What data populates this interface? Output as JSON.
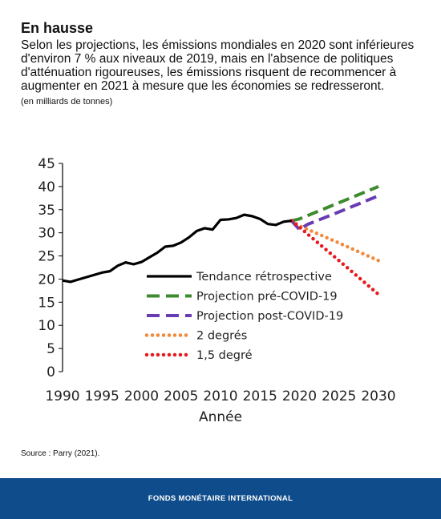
{
  "header": {
    "title": "En hausse",
    "subtitle": "Selon les projections, les émissions mondiales en 2020 sont inférieures d'environ 7 % aux niveaux de 2019, mais en l'absence de politiques d'atténuation rigoureuses, les émissions risquent de recommencer à augmenter en 2021 à mesure que les économies se redresseront.",
    "unit": "(en milliards de tonnes)"
  },
  "source": "Source : Parry (2021).",
  "footer": "FONDS MONÉTAIRE INTERNATIONAL",
  "chart_data": {
    "type": "line",
    "xlabel": "Année",
    "ylabel": "",
    "xlim": [
      1990,
      2030
    ],
    "ylim": [
      0,
      45
    ],
    "xticks": [
      1990,
      1995,
      2000,
      2005,
      2010,
      2015,
      2020,
      2025,
      2030
    ],
    "yticks": [
      0,
      5,
      10,
      15,
      20,
      25,
      30,
      35,
      40,
      45
    ],
    "grid": false,
    "legend_position": "center-right",
    "series": [
      {
        "name": "Tendance rétrospective",
        "color": "#000000",
        "style": "solid",
        "x": [
          1990,
          1991,
          1992,
          1993,
          1994,
          1995,
          1996,
          1997,
          1998,
          1999,
          2000,
          2001,
          2002,
          2003,
          2004,
          2005,
          2006,
          2007,
          2008,
          2009,
          2010,
          2011,
          2012,
          2013,
          2014,
          2015,
          2016,
          2017,
          2018,
          2019
        ],
        "y": [
          19.7,
          19.4,
          19.9,
          20.4,
          20.9,
          21.4,
          21.7,
          22.9,
          23.6,
          23.2,
          23.7,
          24.7,
          25.7,
          27.0,
          27.2,
          27.9,
          29.0,
          30.4,
          31.0,
          30.7,
          32.8,
          32.9,
          33.2,
          33.9,
          33.6,
          33.0,
          31.9,
          31.7,
          32.4,
          32.6
        ]
      },
      {
        "name": "Projection pré-COVID-19",
        "color": "#3d8b2e",
        "style": "dashed",
        "x": [
          2019,
          2020,
          2025,
          2030
        ],
        "y": [
          32.6,
          33.0,
          36.5,
          40.0
        ]
      },
      {
        "name": "Projection post-COVID-19",
        "color": "#6a3cb4",
        "style": "dashed",
        "x": [
          2019,
          2020,
          2021,
          2025,
          2030
        ],
        "y": [
          32.6,
          30.7,
          31.8,
          34.5,
          38.0
        ]
      },
      {
        "name": "2 degrés",
        "color": "#f08a3c",
        "style": "dotted",
        "x": [
          2019,
          2020,
          2025,
          2030
        ],
        "y": [
          32.6,
          31.5,
          27.8,
          24.0
        ]
      },
      {
        "name": "1,5 degré",
        "color": "#e8191e",
        "style": "dotted",
        "x": [
          2019,
          2020,
          2025,
          2030
        ],
        "y": [
          32.6,
          31.2,
          24.0,
          16.7
        ]
      }
    ]
  }
}
